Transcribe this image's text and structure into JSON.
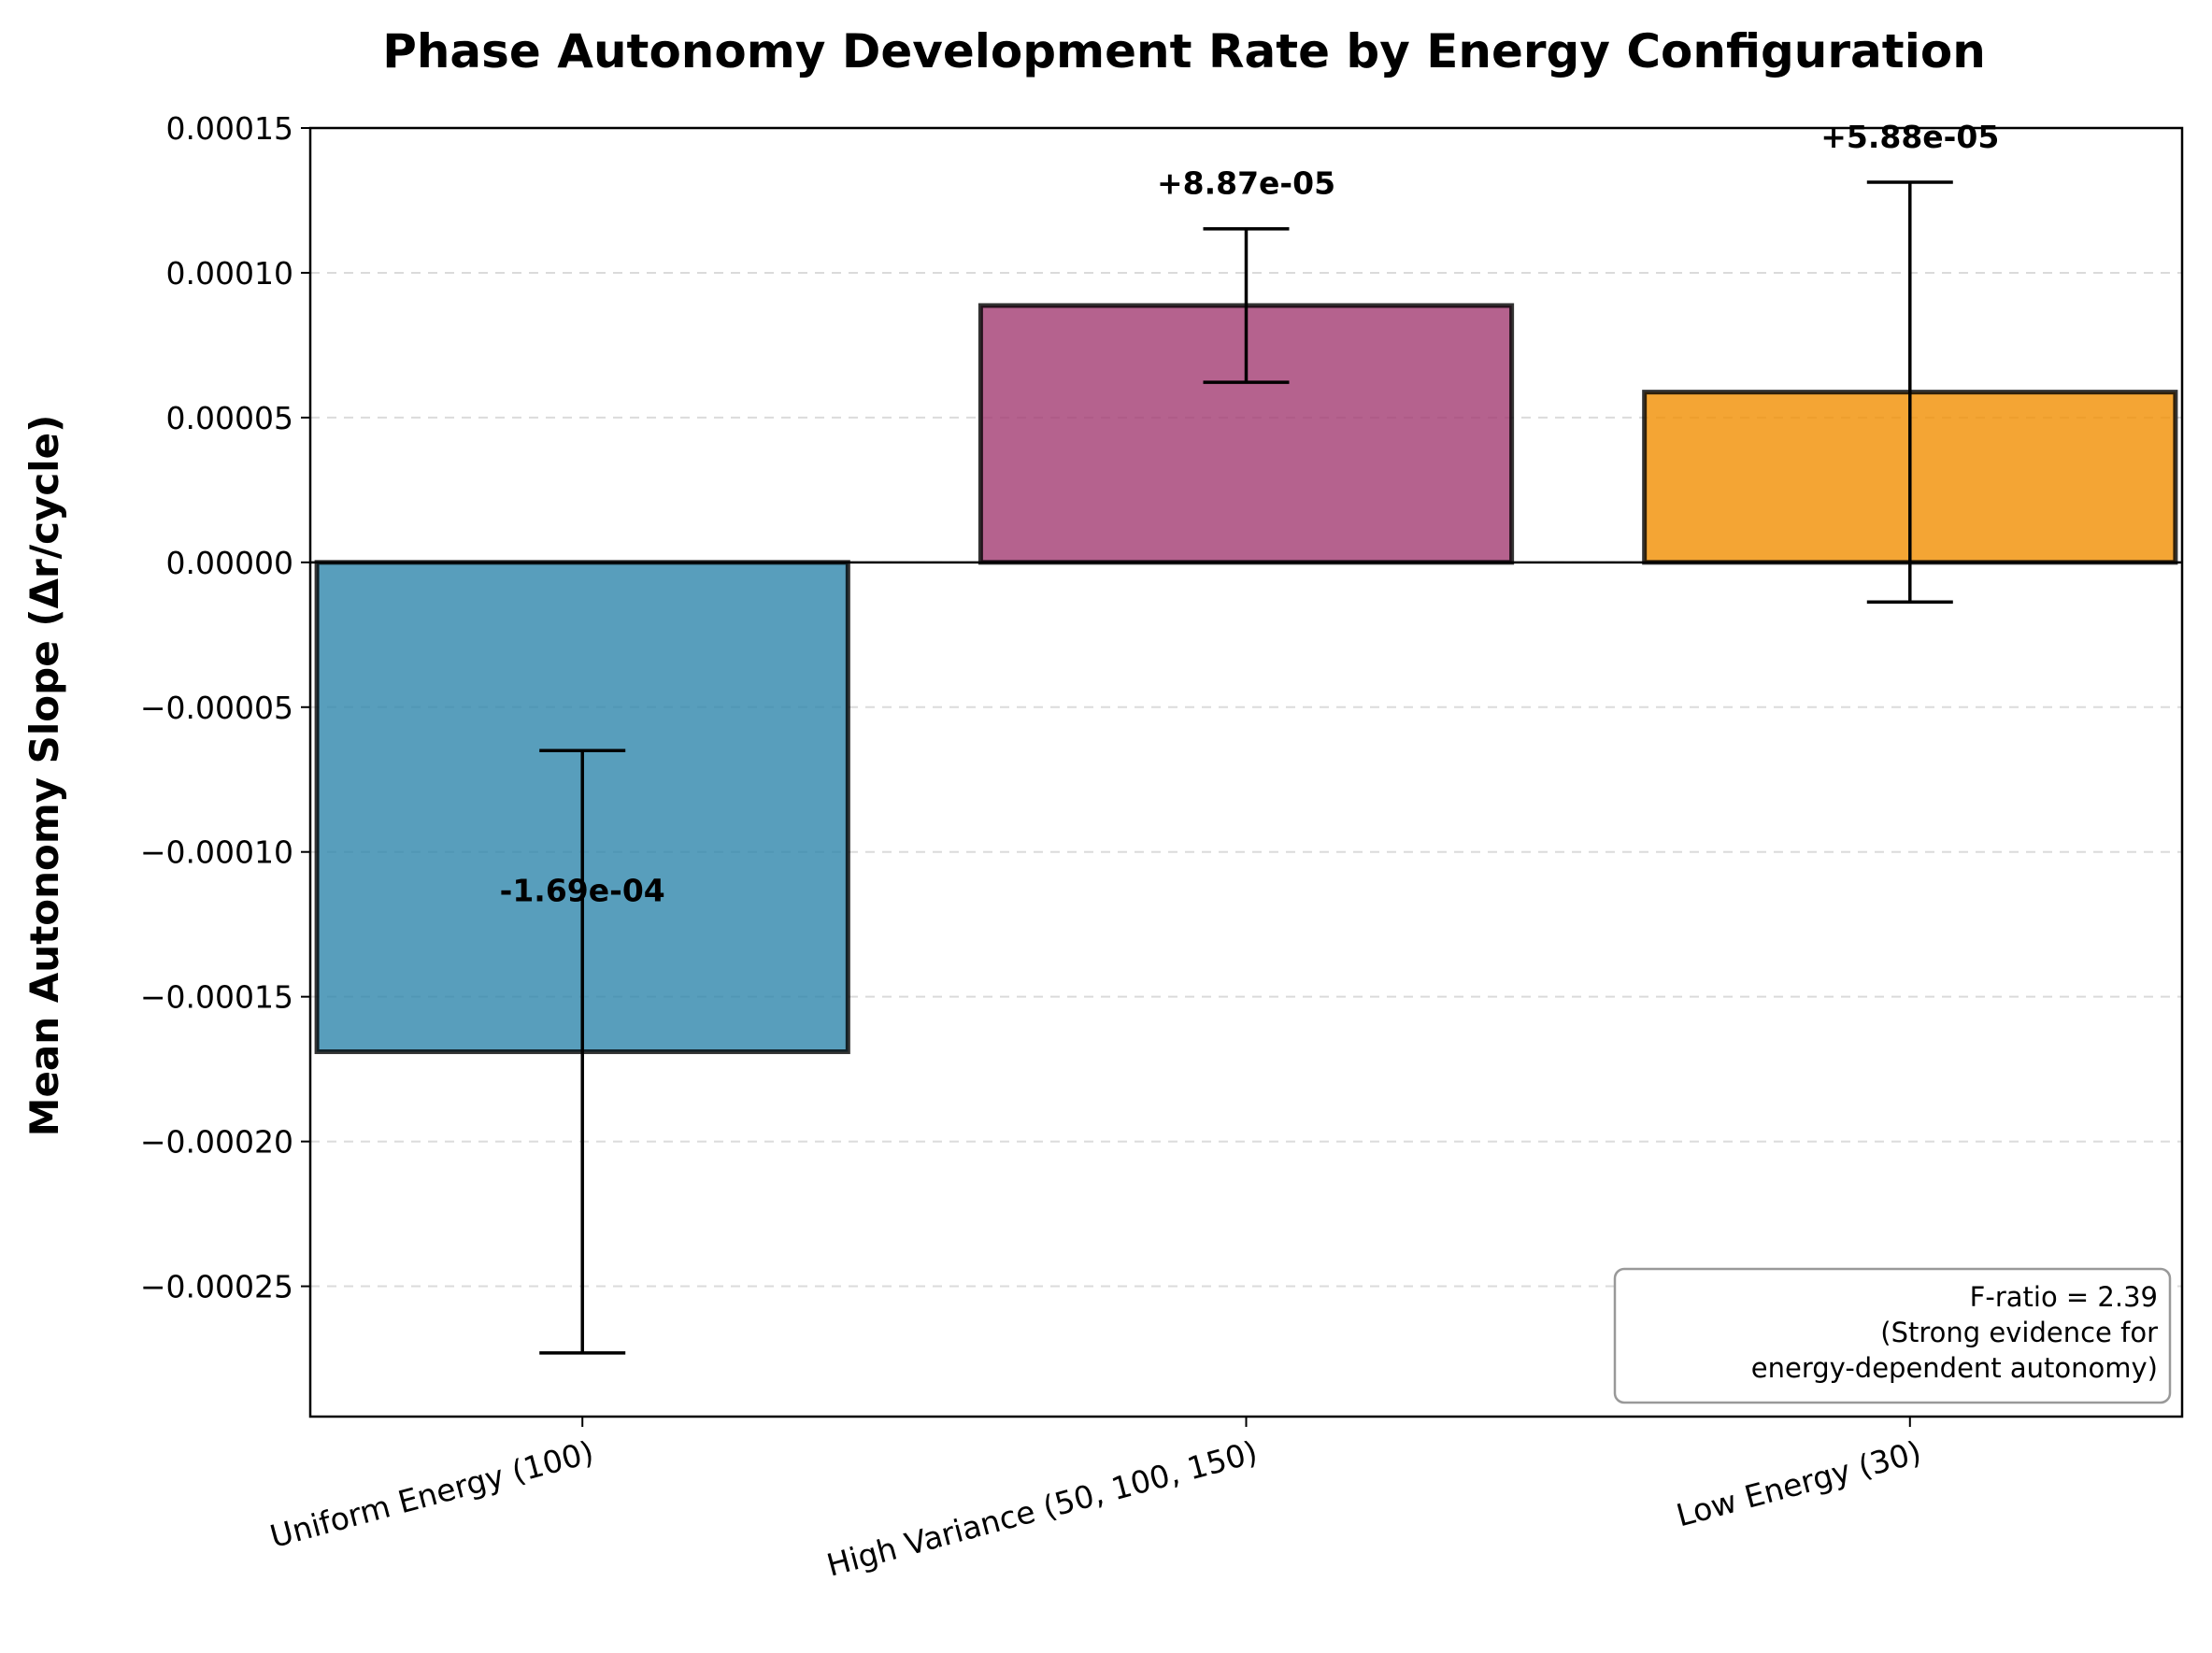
{
  "chart_data": {
    "type": "bar",
    "title": "Phase Autonomy Development Rate by Energy Configuration",
    "xlabel": "",
    "ylabel": "Mean Autonomy Slope (Δr/cycle)",
    "categories": [
      "Uniform Energy (100)",
      "High Variance (50, 100, 150)",
      "Low Energy (30)"
    ],
    "values": [
      -0.000169,
      8.87e-05,
      5.88e-05
    ],
    "errors": [
      0.000104,
      2.65e-05,
      7.25e-05
    ],
    "value_labels": [
      "-1.69e-04",
      "+8.87e-05",
      "+5.88e-05"
    ],
    "colors": [
      "#2E86AB",
      "#A23B72",
      "#F18F01"
    ],
    "ylim": [
      -0.000295,
      0.00015
    ],
    "yticks": [
      0.00015,
      0.0001,
      5e-05,
      0,
      -5e-05,
      -0.0001,
      -0.00015,
      -0.0002,
      -0.00025
    ],
    "ytick_labels": [
      "0.00015",
      "0.00010",
      "0.00005",
      "0.00000",
      "−0.00005",
      "−0.00010",
      "−0.00015",
      "−0.00020",
      "−0.00025"
    ],
    "grid": true,
    "zero_line": true,
    "stats_box": {
      "lines": [
        "F-ratio = 2.39",
        "(Strong evidence for",
        "energy-dependent autonomy)"
      ],
      "placement": "bottom-right"
    }
  }
}
